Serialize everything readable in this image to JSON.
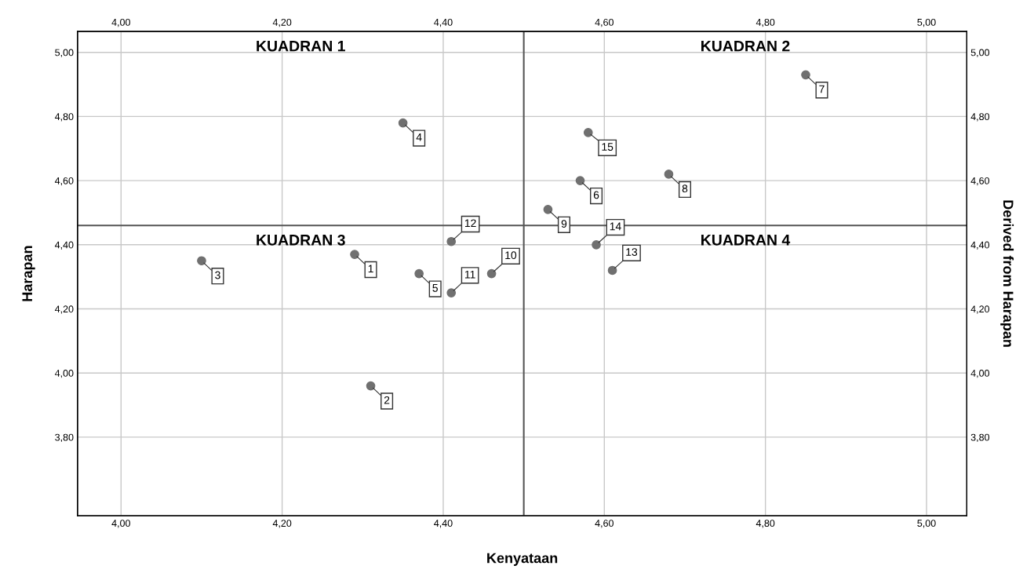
{
  "chart_data": {
    "type": "scatter",
    "xlabel": "Kenyataan",
    "ylabel": "Harapan",
    "y2label": "Derived from Harapan",
    "x": [
      4.29,
      4.31,
      4.1,
      4.35,
      4.37,
      4.57,
      4.85,
      4.68,
      4.53,
      4.46,
      4.41,
      4.41,
      4.61,
      4.59,
      4.58
    ],
    "series": [
      {
        "color": "#707070",
        "values": [
          4.37,
          3.96,
          4.35,
          4.78,
          4.31,
          4.6,
          4.93,
          4.62,
          4.51,
          4.31,
          4.25,
          4.41,
          4.32,
          4.4,
          4.75
        ]
      }
    ],
    "marker": "circle",
    "grid": true,
    "xlim": [
      3.946,
      5.05
    ],
    "ylim": [
      3.555,
      5.065
    ],
    "x2lim": [
      3.946,
      5.05
    ],
    "y2lim": [
      3.555,
      5.065
    ],
    "xticks": [
      {
        "value": 4.0,
        "label": "4,00"
      },
      {
        "value": 4.2,
        "label": "4,20"
      },
      {
        "value": 4.4,
        "label": "4,40"
      },
      {
        "value": 4.6,
        "label": "4,60"
      },
      {
        "value": 4.8,
        "label": "4,80"
      },
      {
        "value": 5.0,
        "label": "5,00"
      }
    ],
    "x2ticks": [
      {
        "value": 4.0,
        "label": "4,00"
      },
      {
        "value": 4.2,
        "label": "4,20"
      },
      {
        "value": 4.4,
        "label": "4,40"
      },
      {
        "value": 4.6,
        "label": "4,60"
      },
      {
        "value": 4.8,
        "label": "4,80"
      },
      {
        "value": 5.0,
        "label": "5,00"
      }
    ],
    "yticks": [
      {
        "value": 3.8,
        "label": "3,80"
      },
      {
        "value": 4.0,
        "label": "4,00"
      },
      {
        "value": 4.2,
        "label": "4,20"
      },
      {
        "value": 4.4,
        "label": "4,40"
      },
      {
        "value": 4.6,
        "label": "4,60"
      },
      {
        "value": 4.8,
        "label": "4,80"
      },
      {
        "value": 5.0,
        "label": "5,00"
      }
    ],
    "y2ticks": [
      {
        "value": 3.8,
        "label": "3,80"
      },
      {
        "value": 4.0,
        "label": "4,00"
      },
      {
        "value": 4.2,
        "label": "4,20"
      },
      {
        "value": 4.4,
        "label": "4,40"
      },
      {
        "value": 4.6,
        "label": "4,60"
      },
      {
        "value": 4.8,
        "label": "4,80"
      },
      {
        "value": 5.0,
        "label": "5,00"
      }
    ],
    "ref_lines": [
      {
        "axis": "x",
        "value": 4.5,
        "color": "#555555"
      },
      {
        "axis": "y",
        "value": 4.46,
        "color": "#555555"
      }
    ],
    "annotations": [
      "KUADRAN 1",
      "KUADRAN 2",
      "KUADRAN 3",
      "KUADRAN 4",
      {
        "text": "1",
        "x": 4.29,
        "y": 4.37
      },
      {
        "text": "2",
        "x": 4.31,
        "y": 3.96
      },
      {
        "text": "3",
        "x": 4.1,
        "y": 4.35
      },
      {
        "text": "4",
        "x": 4.35,
        "y": 4.78
      },
      {
        "text": "5",
        "x": 4.37,
        "y": 4.31
      },
      {
        "text": "6",
        "x": 4.57,
        "y": 4.6
      },
      {
        "text": "7",
        "x": 4.85,
        "y": 4.93
      },
      {
        "text": "8",
        "x": 4.68,
        "y": 4.62
      },
      {
        "text": "9",
        "x": 4.53,
        "y": 4.51
      },
      {
        "text": "10",
        "x": 4.46,
        "y": 4.31
      },
      {
        "text": "11",
        "x": 4.41,
        "y": 4.25
      },
      {
        "text": "12",
        "x": 4.41,
        "y": 4.41
      },
      {
        "text": "13",
        "x": 4.61,
        "y": 4.32
      },
      {
        "text": "14",
        "x": 4.59,
        "y": 4.4
      },
      {
        "text": "15",
        "x": 4.58,
        "y": 4.75
      }
    ]
  }
}
